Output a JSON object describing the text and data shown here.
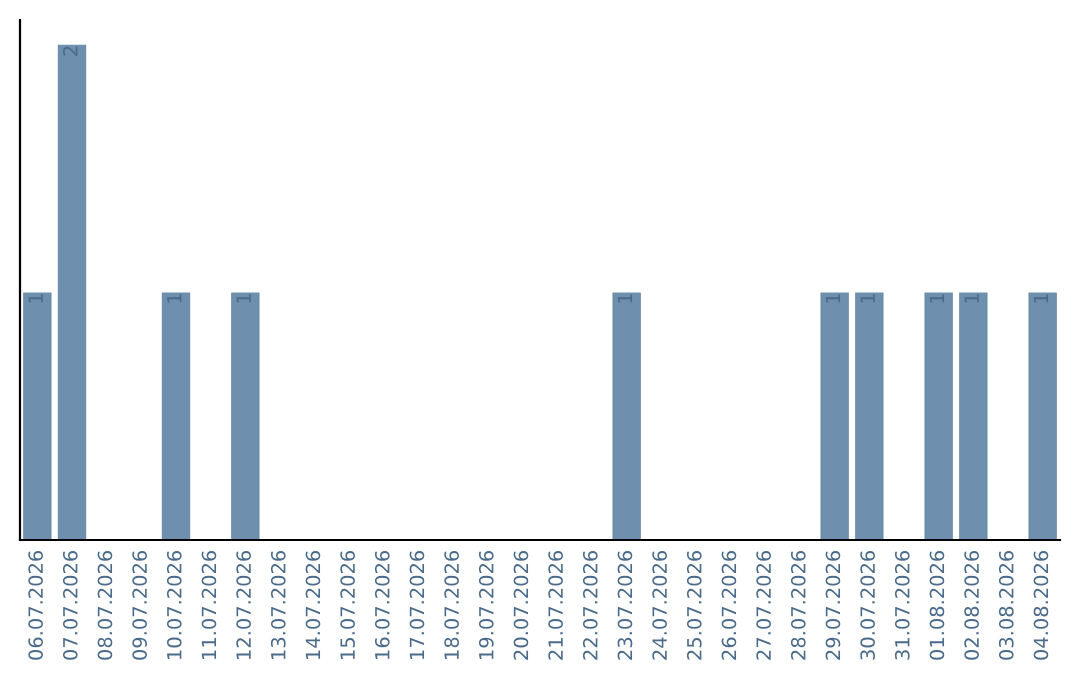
{
  "chart_data": {
    "type": "bar",
    "categories": [
      "06.07.2026",
      "07.07.2026",
      "08.07.2026",
      "09.07.2026",
      "10.07.2026",
      "11.07.2026",
      "12.07.2026",
      "13.07.2026",
      "14.07.2026",
      "15.07.2026",
      "16.07.2026",
      "17.07.2026",
      "18.07.2026",
      "19.07.2026",
      "20.07.2026",
      "21.07.2026",
      "22.07.2026",
      "23.07.2026",
      "24.07.2026",
      "25.07.2026",
      "26.07.2026",
      "27.07.2026",
      "28.07.2026",
      "29.07.2026",
      "30.07.2026",
      "31.07.2026",
      "01.08.2026",
      "02.08.2026",
      "03.08.2026",
      "04.08.2026"
    ],
    "values": [
      1,
      2,
      0,
      0,
      1,
      0,
      1,
      0,
      0,
      0,
      0,
      0,
      0,
      0,
      0,
      0,
      0,
      1,
      0,
      0,
      0,
      0,
      0,
      1,
      1,
      0,
      1,
      1,
      0,
      1
    ],
    "value_labels": [
      "1",
      "2",
      null,
      null,
      "1",
      null,
      "1",
      null,
      null,
      null,
      null,
      null,
      null,
      null,
      null,
      null,
      null,
      "1",
      null,
      null,
      null,
      null,
      null,
      "1",
      "1",
      null,
      "1",
      "1",
      null,
      "1"
    ],
    "color": "#6e8fad",
    "ylim": [
      0,
      2.1
    ],
    "tick_labels": "x",
    "grid": false,
    "legend": false
  }
}
